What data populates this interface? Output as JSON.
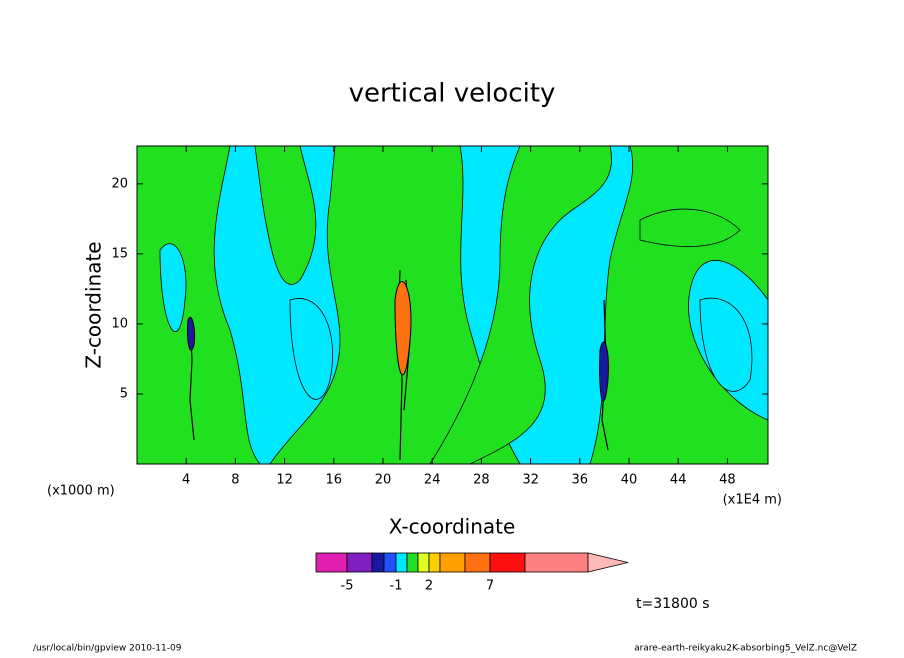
{
  "chart_data": {
    "type": "contour",
    "title": "vertical velocity",
    "x_label": "X-coordinate",
    "y_label": "Z-coordinate",
    "x_unit": "(x1E4 m)",
    "y_unit": "(x1000 m)",
    "annotation": "t=31800 s",
    "footer_left": "/usr/local/bin/gpview  2010-11-09",
    "footer_right": "arare-earth-reikyaku2K-absorbing5_VelZ.nc@VelZ",
    "xlim": [
      0,
      51.3
    ],
    "ylim": [
      0,
      22.7
    ],
    "xticks": [
      4,
      8,
      12,
      16,
      20,
      24,
      28,
      32,
      36,
      40,
      44,
      48
    ],
    "yticks": [
      5,
      10,
      15,
      20
    ],
    "colorbar": {
      "colors": [
        "#e020b0",
        "#8020c0",
        "#1818a0",
        "#2050ff",
        "#00e8ff",
        "#20e020",
        "#e0ff20",
        "#ffd000",
        "#ffa000",
        "#ff7010",
        "#ff1010",
        "#ff8080",
        "#ffb8b8"
      ],
      "ticks": [
        -5,
        -1,
        2,
        7
      ]
    }
  }
}
